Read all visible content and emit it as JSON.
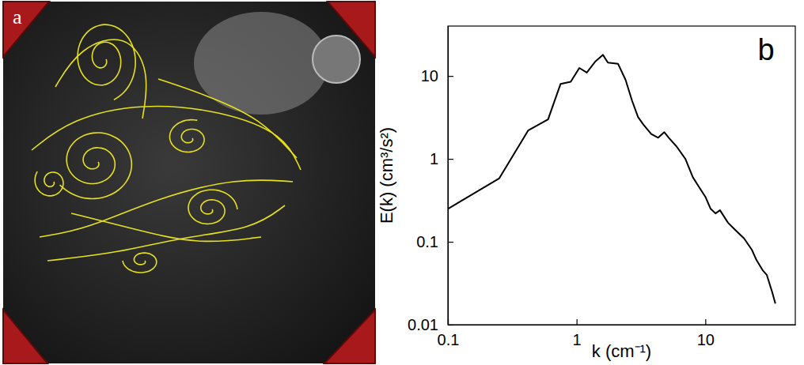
{
  "image_panel": {
    "label": "a"
  },
  "chart_data": {
    "type": "line",
    "panel_label": "b",
    "x_label": "k (cm⁻¹)",
    "y_label": "E(k) (cm³/s²)",
    "log": true,
    "color": "#000000",
    "xlim": [
      0.1,
      50
    ],
    "xticks": [
      0.1,
      1,
      10
    ],
    "ylim": [
      0.01,
      40
    ],
    "yticks": [
      0.01,
      0.1,
      1,
      10
    ],
    "x": [
      0.1,
      0.25,
      0.42,
      0.6,
      0.75,
      0.9,
      1.05,
      1.2,
      1.4,
      1.6,
      1.75,
      2.1,
      2.4,
      2.7,
      3.0,
      3.3,
      3.8,
      4.3,
      4.8,
      5.2,
      6,
      7,
      8,
      9,
      10,
      11,
      12,
      13,
      15,
      17,
      20,
      23,
      25,
      28,
      30,
      33,
      35
    ],
    "values": [
      0.25,
      0.58,
      2.2,
      3.0,
      8,
      8.5,
      12.5,
      11,
      15,
      18,
      14.5,
      14,
      9,
      5,
      3.2,
      2.6,
      2.0,
      1.8,
      2.1,
      1.8,
      1.4,
      1.0,
      0.6,
      0.45,
      0.35,
      0.25,
      0.22,
      0.24,
      0.17,
      0.14,
      0.11,
      0.08,
      0.06,
      0.045,
      0.04,
      0.025,
      0.018
    ]
  }
}
